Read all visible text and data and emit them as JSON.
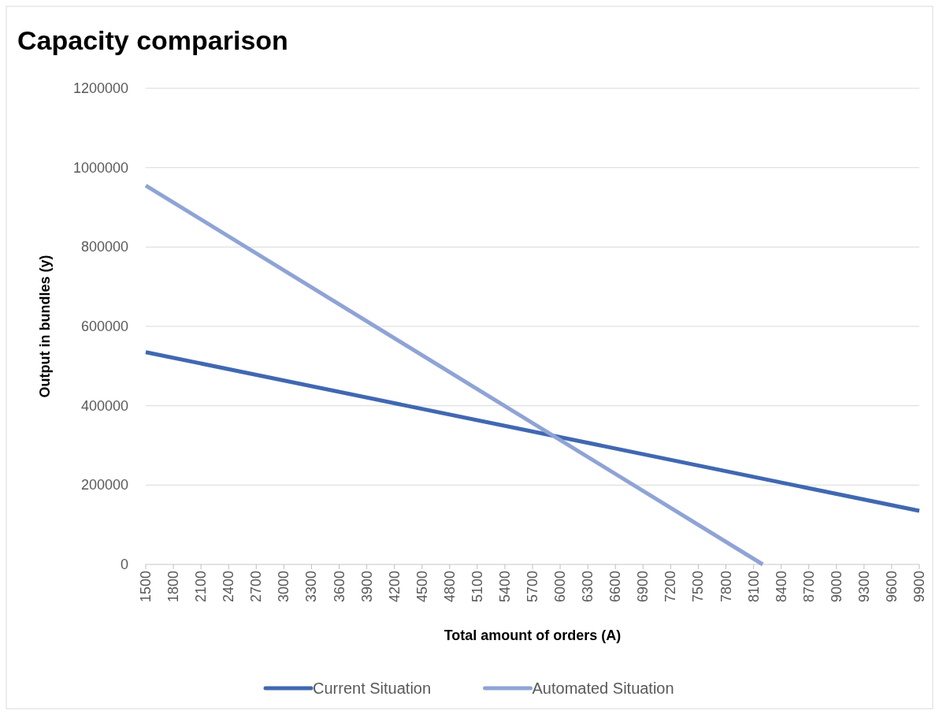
{
  "chart_data": {
    "type": "line",
    "title": "Capacity comparison",
    "xlabel": "Total amount of orders (A)",
    "ylabel": "Output in bundles (y)",
    "xlim": [
      1500,
      9900
    ],
    "xticks": [
      1500,
      1800,
      2100,
      2400,
      2700,
      3000,
      3300,
      3600,
      3900,
      4200,
      4500,
      4800,
      5100,
      5400,
      5700,
      6000,
      6300,
      6600,
      6900,
      7200,
      7500,
      7800,
      8100,
      8400,
      8700,
      9000,
      9300,
      9600,
      9900
    ],
    "ylim": [
      0,
      1200000
    ],
    "yticks": [
      0,
      200000,
      400000,
      600000,
      800000,
      1000000,
      1200000
    ],
    "series": [
      {
        "name": "Current Situation",
        "color": "#4068b2",
        "x": [
          1500,
          9900
        ],
        "values": [
          535000,
          135000
        ]
      },
      {
        "name": "Automated Situation",
        "color": "#8fa3d6",
        "x": [
          1500,
          8200
        ],
        "values": [
          955000,
          0
        ]
      }
    ],
    "grid": "y",
    "legend": "bottom",
    "marker": "none",
    "line_style": "solid"
  }
}
